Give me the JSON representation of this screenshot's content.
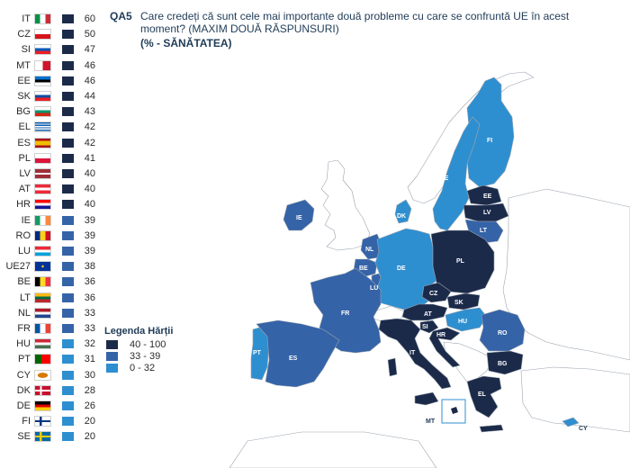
{
  "header": {
    "qa_label": "QA5",
    "question": "Care credeți că sunt cele mai importante două probleme cu care se confruntă UE în acest moment? (MAXIM DOUĂ RĂSPUNSURI)",
    "subtitle": "(% - SĂNĂTATEA)"
  },
  "colors": {
    "high": "#1c2a4a",
    "mid": "#3563a8",
    "low": "#2e8fd0",
    "non_eu": "#ffffff",
    "border": "#9aa4ae"
  },
  "countries": [
    {
      "code": "IT",
      "value": "60",
      "band": "high",
      "flag": "it"
    },
    {
      "code": "CZ",
      "value": "50",
      "band": "high",
      "flag": "cz"
    },
    {
      "code": "SI",
      "value": "47",
      "band": "high",
      "flag": "si"
    },
    {
      "code": "MT",
      "value": "46",
      "band": "high",
      "flag": "mt"
    },
    {
      "code": "EE",
      "value": "46",
      "band": "high",
      "flag": "ee"
    },
    {
      "code": "SK",
      "value": "44",
      "band": "high",
      "flag": "sk"
    },
    {
      "code": "BG",
      "value": "43",
      "band": "high",
      "flag": "bg"
    },
    {
      "code": "EL",
      "value": "42",
      "band": "high",
      "flag": "el"
    },
    {
      "code": "ES",
      "value": "42",
      "band": "high",
      "flag": "es"
    },
    {
      "code": "PL",
      "value": "41",
      "band": "high",
      "flag": "pl"
    },
    {
      "code": "LV",
      "value": "40",
      "band": "high",
      "flag": "lv"
    },
    {
      "code": "AT",
      "value": "40",
      "band": "high",
      "flag": "at"
    },
    {
      "code": "HR",
      "value": "40",
      "band": "high",
      "flag": "hr"
    },
    {
      "code": "IE",
      "value": "39",
      "band": "mid",
      "flag": "ie"
    },
    {
      "code": "RO",
      "value": "39",
      "band": "mid",
      "flag": "ro"
    },
    {
      "code": "LU",
      "value": "39",
      "band": "mid",
      "flag": "lu"
    },
    {
      "code": "UE27",
      "value": "38",
      "band": "mid",
      "flag": "eu"
    },
    {
      "code": "BE",
      "value": "36",
      "band": "mid",
      "flag": "be"
    },
    {
      "code": "LT",
      "value": "36",
      "band": "mid",
      "flag": "lt"
    },
    {
      "code": "NL",
      "value": "33",
      "band": "mid",
      "flag": "nl"
    },
    {
      "code": "FR",
      "value": "33",
      "band": "mid",
      "flag": "fr"
    },
    {
      "code": "HU",
      "value": "32",
      "band": "low",
      "flag": "hu"
    },
    {
      "code": "PT",
      "value": "31",
      "band": "low",
      "flag": "pt"
    },
    {
      "code": "CY",
      "value": "30",
      "band": "low",
      "flag": "cy"
    },
    {
      "code": "DK",
      "value": "28",
      "band": "low",
      "flag": "dk"
    },
    {
      "code": "DE",
      "value": "26",
      "band": "low",
      "flag": "de"
    },
    {
      "code": "FI",
      "value": "20",
      "band": "low",
      "flag": "fi"
    },
    {
      "code": "SE",
      "value": "20",
      "band": "low",
      "flag": "se"
    }
  ],
  "legend": {
    "title": "Legenda Hărții",
    "items": [
      {
        "label": "40 - 100",
        "band": "high"
      },
      {
        "label": "33 - 39",
        "band": "mid"
      },
      {
        "label": "0 - 32",
        "band": "low"
      }
    ]
  },
  "map": {
    "labels": [
      "FI",
      "SE",
      "EE",
      "LV",
      "LT",
      "DK",
      "IE",
      "NL",
      "BE",
      "LU",
      "DE",
      "PL",
      "CZ",
      "SK",
      "AT",
      "HU",
      "SI",
      "HR",
      "RO",
      "BG",
      "FR",
      "PT",
      "ES",
      "IT",
      "EL",
      "MT",
      "CY"
    ]
  }
}
